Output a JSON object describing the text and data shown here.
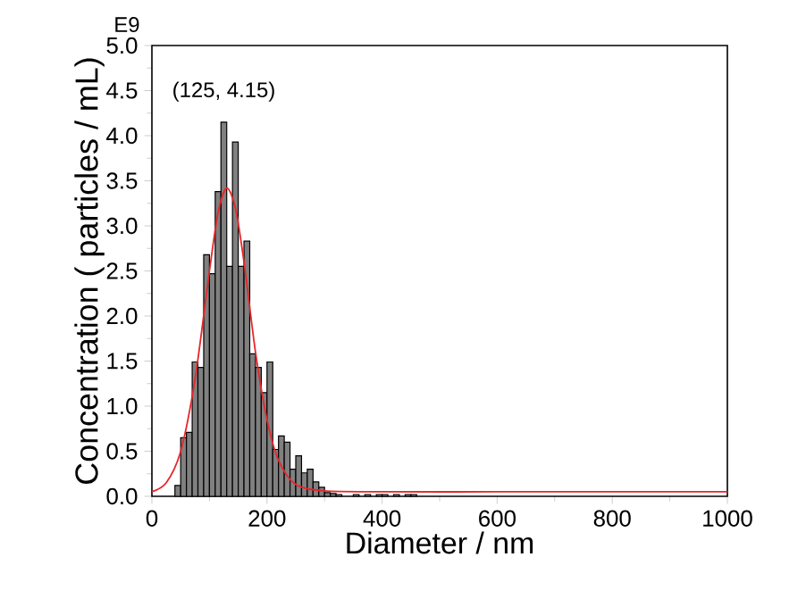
{
  "chart_data": {
    "type": "histogram",
    "xlabel": "Diameter / nm",
    "ylabel": "Concentration ( particles / mL)",
    "annotations": [
      {
        "text": "(125, 4.15)",
        "x": 125,
        "y": 4.15
      },
      "E9"
    ],
    "bins": [
      40,
      50,
      60,
      70,
      80,
      90,
      100,
      110,
      120,
      130,
      140,
      150,
      160,
      170,
      180,
      190,
      200,
      210,
      220,
      230,
      240,
      250,
      260,
      270,
      280,
      290,
      300,
      310,
      320,
      330,
      340,
      350,
      360,
      370,
      380,
      390,
      400,
      410,
      420,
      430,
      440,
      450,
      460,
      470
    ],
    "values": [
      0.12,
      0.65,
      0.71,
      1.49,
      1.43,
      2.68,
      2.47,
      3.38,
      4.15,
      2.55,
      3.93,
      2.55,
      2.83,
      1.58,
      1.43,
      1.15,
      1.49,
      0.52,
      0.67,
      0.6,
      0.3,
      0.45,
      0.26,
      0.3,
      0.16,
      0.1,
      0.04,
      0.03,
      0.02,
      0,
      0,
      0.02,
      0,
      0.02,
      0,
      0.02,
      0.02,
      0,
      0.02,
      0,
      0.02,
      0.02,
      0
    ],
    "color": "#808080",
    "series": [
      {
        "type": "line",
        "color": "#e8262a",
        "x": [
          0,
          25,
          50,
          75,
          100,
          115,
          130,
          145,
          160,
          180,
          200,
          220,
          250,
          300,
          400,
          600,
          800,
          1000
        ],
        "values": [
          0.05,
          0.15,
          0.5,
          1.3,
          2.5,
          3.15,
          3.42,
          3.2,
          2.6,
          1.6,
          0.85,
          0.4,
          0.13,
          0.06,
          0.05,
          0.05,
          0.05,
          0.05
        ]
      }
    ],
    "xlim": [
      0,
      1000
    ],
    "ylim": [
      0,
      5
    ],
    "xticks": [
      0,
      200,
      400,
      600,
      800,
      1000
    ],
    "yticks": [
      {
        "value": 0,
        "label": "0.0"
      },
      {
        "value": 0.5,
        "label": "0.5"
      },
      {
        "value": 1,
        "label": "1.0"
      },
      {
        "value": 1.5,
        "label": "1.5"
      },
      {
        "value": 2,
        "label": "2.0"
      },
      {
        "value": 2.5,
        "label": "2.5"
      },
      {
        "value": 3,
        "label": "3.0"
      },
      {
        "value": 3.5,
        "label": "3.5"
      },
      {
        "value": 4,
        "label": "4.0"
      },
      {
        "value": 4.5,
        "label": "4.5"
      },
      {
        "value": 5,
        "label": "5.0"
      }
    ]
  }
}
